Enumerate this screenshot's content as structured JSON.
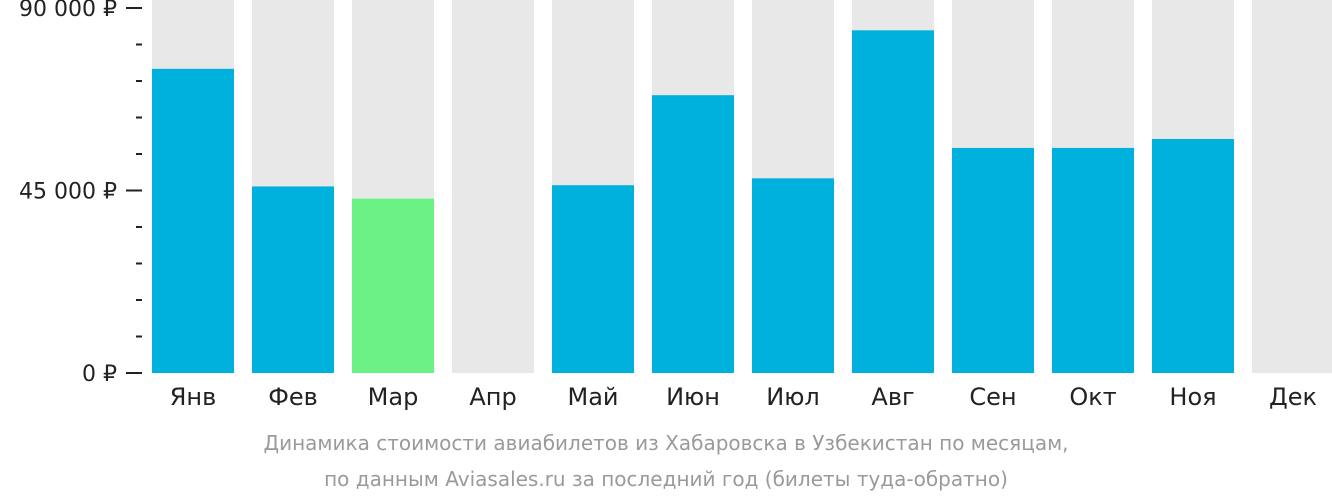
{
  "chart_data": {
    "type": "bar",
    "categories": [
      "Янв",
      "Фев",
      "Мар",
      "Апр",
      "Май",
      "Июн",
      "Июл",
      "Авг",
      "Сен",
      "Окт",
      "Ноя",
      "Дек"
    ],
    "values": [
      75000,
      46000,
      43000,
      null,
      46300,
      68500,
      48000,
      84500,
      55500,
      55500,
      57700,
      null
    ],
    "ylim": [
      0,
      90000
    ],
    "y_ticks": [
      {
        "value": 0,
        "label": "0 ₽"
      },
      {
        "value": 45000,
        "label": "45 000 ₽"
      },
      {
        "value": 90000,
        "label": "90 000 ₽"
      }
    ],
    "minor_tick_step": 9000,
    "highlight_index": 2,
    "colors": {
      "bar": "#00b0dd",
      "highlight": "#6af284",
      "background_bar": "#e8e8e8",
      "axis": "#222222"
    },
    "grid": false,
    "legend": "none"
  },
  "caption": {
    "line1": "Динамика стоимости авиабилетов из Хабаровска в Узбекистан по месяцам,",
    "line2": "по данным Aviasales.ru за последний год (билеты туда-обратно)"
  }
}
